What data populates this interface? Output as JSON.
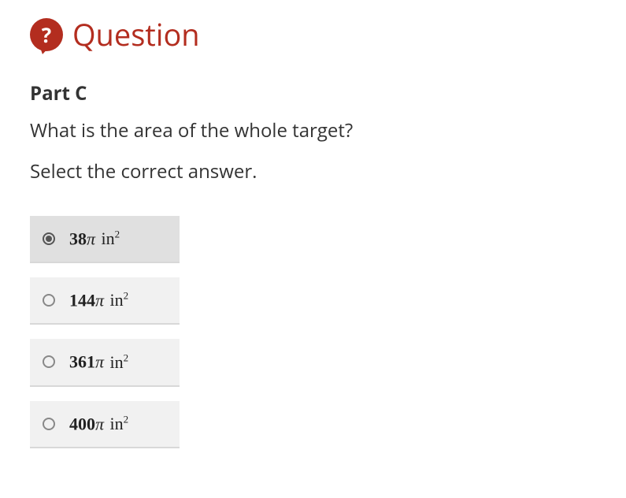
{
  "header": {
    "icon": "?",
    "title": "Question"
  },
  "part": {
    "label": "Part C",
    "question": "What is the area of the whole target?",
    "instruction": "Select the correct answer."
  },
  "options": [
    {
      "coef": "38",
      "pi": "π",
      "unit_base": "in",
      "unit_exp": "2",
      "selected": true
    },
    {
      "coef": "144",
      "pi": "π",
      "unit_base": "in",
      "unit_exp": "2",
      "selected": false
    },
    {
      "coef": "361",
      "pi": "π",
      "unit_base": "in",
      "unit_exp": "2",
      "selected": false
    },
    {
      "coef": "400",
      "pi": "π",
      "unit_base": "in",
      "unit_exp": "2",
      "selected": false
    }
  ],
  "colors": {
    "accent": "#b32d1f",
    "option_bg": "#f1f1f1",
    "option_selected_bg": "#e0e0e0",
    "option_border": "#d8d8d8",
    "text": "#333333"
  }
}
